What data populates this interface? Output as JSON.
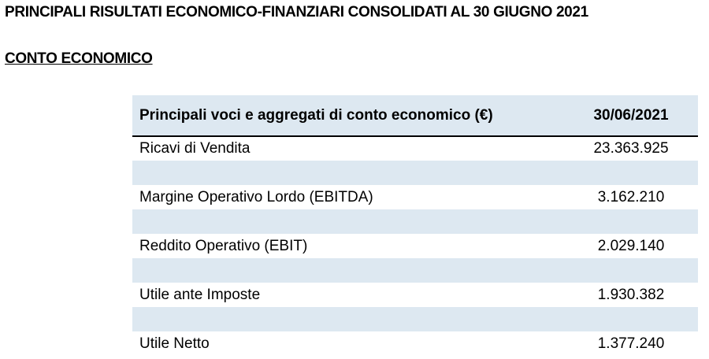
{
  "document": {
    "title": "PRINCIPALI RISULTATI ECONOMICO-FINANZIARI CONSOLIDATI AL 30 GIUGNO 2021",
    "section_title": "CONTO ECONOMICO"
  },
  "table": {
    "header": {
      "label": "Principali voci e aggregati di conto economico (€)",
      "period": "30/06/2021"
    },
    "rows": [
      {
        "label": "Ricavi di Vendita",
        "value": "23.363.925"
      },
      {
        "label": "Margine Operativo Lordo (EBITDA)",
        "value": "3.162.210"
      },
      {
        "label": "Reddito Operativo (EBIT)",
        "value": "2.029.140"
      },
      {
        "label": "Utile ante Imposte",
        "value": "1.930.382"
      },
      {
        "label": "Utile Netto",
        "value": "1.377.240"
      }
    ],
    "colors": {
      "header_bg": "#dde8f1",
      "band_bg": "#dde8f1"
    }
  }
}
